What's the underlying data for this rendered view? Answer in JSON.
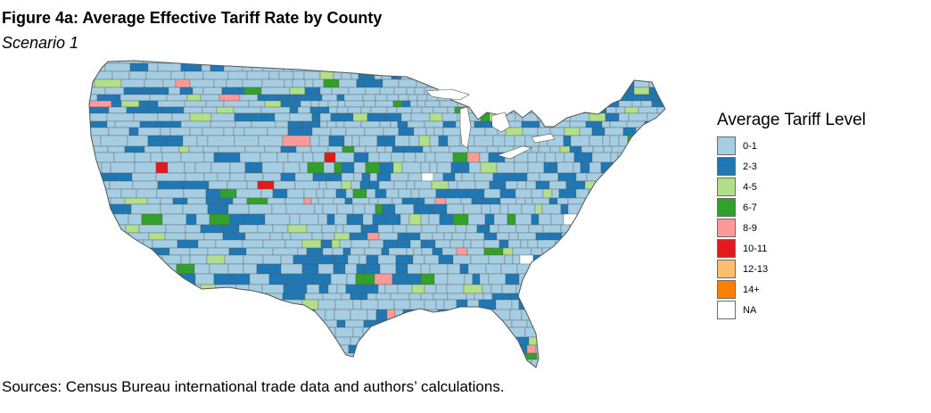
{
  "header": {
    "title": "Figure 4a: Average Effective Tariff Rate by County",
    "subtitle": "Scenario 1"
  },
  "legend": {
    "title": "Average Tariff Level",
    "items": [
      {
        "label": "0-1",
        "color": "#a6cee3"
      },
      {
        "label": "2-3",
        "color": "#1f78b4"
      },
      {
        "label": "4-5",
        "color": "#b2df8a"
      },
      {
        "label": "6-7",
        "color": "#33a02c"
      },
      {
        "label": "8-9",
        "color": "#fb9a99"
      },
      {
        "label": "10-11",
        "color": "#e31a1c"
      },
      {
        "label": "12-13",
        "color": "#fdbf6f"
      },
      {
        "label": "14+",
        "color": "#ff7f00"
      },
      {
        "label": "NA",
        "color": "#ffffff"
      }
    ]
  },
  "map": {
    "region": "Contiguous United States, counties",
    "border_color": "#555555"
  },
  "footer": {
    "source": "Sources: Census Bureau international trade data and authors’ calculations."
  }
}
